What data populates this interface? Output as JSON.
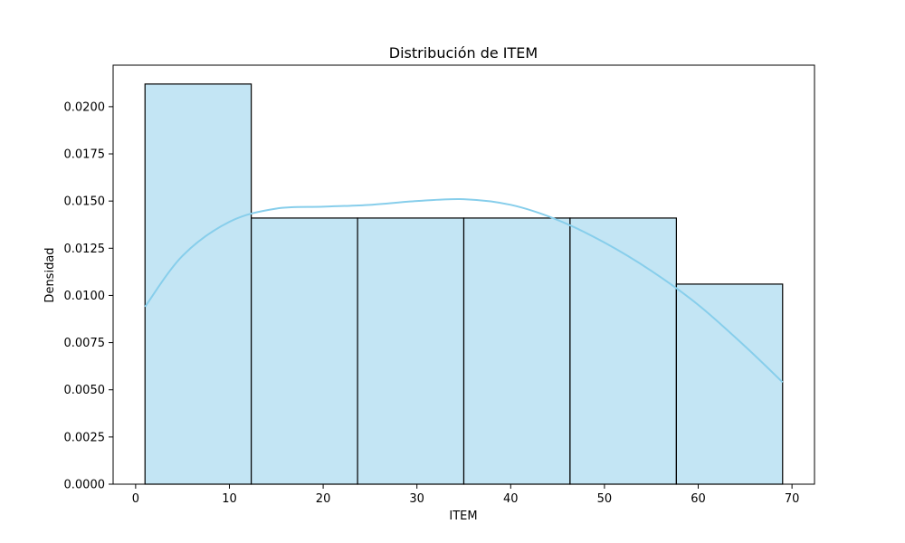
{
  "chart_data": {
    "type": "bar",
    "title": "Distribución de ITEM",
    "xlabel": "ITEM",
    "ylabel": "Densidad",
    "xlim": [
      -2.4,
      72.4
    ],
    "ylim": [
      0,
      0.0222
    ],
    "x_ticks": [
      0,
      10,
      20,
      30,
      40,
      50,
      60,
      70
    ],
    "x_tick_labels": [
      "0",
      "10",
      "20",
      "30",
      "40",
      "50",
      "60",
      "70"
    ],
    "y_ticks": [
      0,
      0.0025,
      0.005,
      0.0075,
      0.01,
      0.0125,
      0.015,
      0.0175,
      0.02
    ],
    "y_tick_labels": [
      "0.0000",
      "0.0025",
      "0.0050",
      "0.0075",
      "0.0100",
      "0.0125",
      "0.0150",
      "0.0175",
      "0.0200"
    ],
    "bins": [
      {
        "x0": 1.0,
        "x1": 12.33,
        "value": 0.0212
      },
      {
        "x0": 12.33,
        "x1": 23.67,
        "value": 0.0141
      },
      {
        "x0": 23.67,
        "x1": 35.0,
        "value": 0.0141
      },
      {
        "x0": 35.0,
        "x1": 46.33,
        "value": 0.0141
      },
      {
        "x0": 46.33,
        "x1": 57.67,
        "value": 0.0141
      },
      {
        "x0": 57.67,
        "x1": 69.0,
        "value": 0.0106
      }
    ],
    "kde": {
      "x": [
        1,
        5,
        10,
        15,
        20,
        25,
        30,
        35,
        40,
        45,
        50,
        55,
        60,
        65,
        69
      ],
      "y": [
        0.0094,
        0.0121,
        0.0139,
        0.0146,
        0.0147,
        0.0148,
        0.015,
        0.0151,
        0.0148,
        0.014,
        0.0128,
        0.0113,
        0.0095,
        0.0073,
        0.0054
      ]
    },
    "grid": false,
    "colors": {
      "bar_fill": "#c3e5f4",
      "bar_edge": "#000000",
      "kde_line": "#87ceeb"
    }
  }
}
